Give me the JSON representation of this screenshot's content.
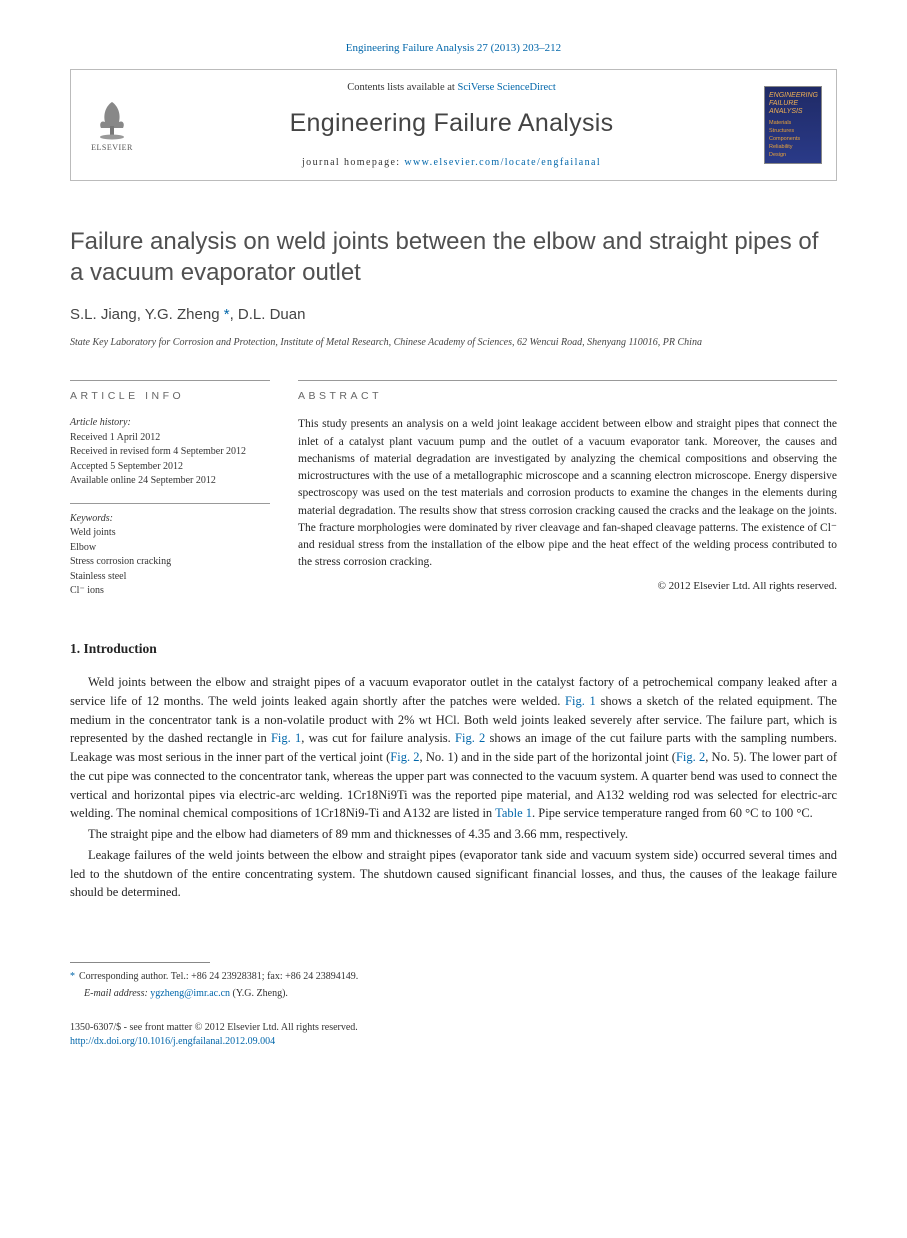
{
  "journal_ref": "Engineering Failure Analysis 27 (2013) 203–212",
  "header": {
    "contents_prefix": "Contents lists available at ",
    "contents_link": "SciVerse ScienceDirect",
    "journal_name": "Engineering Failure Analysis",
    "homepage_prefix": "journal homepage: ",
    "homepage_link": "www.elsevier.com/locate/engfailanal",
    "logo_text": "ELSEVIER",
    "cover": {
      "title": "ENGINEERING FAILURE ANALYSIS",
      "items": [
        "Materials",
        "Structures",
        "Components",
        "Reliability",
        "Design"
      ]
    }
  },
  "article": {
    "title": "Failure analysis on weld joints between the elbow and straight pipes of a vacuum evaporator outlet",
    "authors_html": "S.L. Jiang, Y.G. Zheng <span class=\"corr\">*</span>, D.L. Duan",
    "affiliation": "State Key Laboratory for Corrosion and Protection, Institute of Metal Research, Chinese Academy of Sciences, 62 Wencui Road, Shenyang 110016, PR China"
  },
  "article_info": {
    "heading": "ARTICLE INFO",
    "history_title": "Article history:",
    "received": "Received 1 April 2012",
    "revised": "Received in revised form 4 September 2012",
    "accepted": "Accepted 5 September 2012",
    "online": "Available online 24 September 2012",
    "keywords_title": "Keywords:",
    "keywords": [
      "Weld joints",
      "Elbow",
      "Stress corrosion cracking",
      "Stainless steel",
      "Cl⁻ ions"
    ]
  },
  "abstract": {
    "heading": "ABSTRACT",
    "text": "This study presents an analysis on a weld joint leakage accident between elbow and straight pipes that connect the inlet of a catalyst plant vacuum pump and the outlet of a vacuum evaporator tank. Moreover, the causes and mechanisms of material degradation are investigated by analyzing the chemical compositions and observing the microstructures with the use of a metallographic microscope and a scanning electron microscope. Energy dispersive spectroscopy was used on the test materials and corrosion products to examine the changes in the elements during material degradation. The results show that stress corrosion cracking caused the cracks and the leakage on the joints. The fracture morphologies were dominated by river cleavage and fan-shaped cleavage patterns. The existence of Cl⁻ and residual stress from the installation of the elbow pipe and the heat effect of the welding process contributed to the stress corrosion cracking.",
    "copyright": "© 2012 Elsevier Ltd. All rights reserved."
  },
  "intro": {
    "heading": "1. Introduction",
    "p1": "Weld joints between the elbow and straight pipes of a vacuum evaporator outlet in the catalyst factory of a petrochemical company leaked after a service life of 12 months. The weld joints leaked again shortly after the patches were welded. <span class=\"fig-link\">Fig. 1</span> shows a sketch of the related equipment. The medium in the concentrator tank is a non-volatile product with 2% wt HCl. Both weld joints leaked severely after service. The failure part, which is represented by the dashed rectangle in <span class=\"fig-link\">Fig. 1</span>, was cut for failure analysis. <span class=\"fig-link\">Fig. 2</span> shows an image of the cut failure parts with the sampling numbers. Leakage was most serious in the inner part of the vertical joint (<span class=\"fig-link\">Fig. 2</span>, No. 1) and in the side part of the horizontal joint (<span class=\"fig-link\">Fig. 2</span>, No. 5). The lower part of the cut pipe was connected to the concentrator tank, whereas the upper part was connected to the vacuum system. A quarter bend was used to connect the vertical and horizontal pipes via electric-arc welding. 1Cr18Ni9Ti was the reported pipe material, and A132 welding rod was selected for electric-arc welding. The nominal chemical compositions of 1Cr18Ni9-Ti and A132 are listed in <span class=\"fig-link\">Table 1</span>. Pipe service temperature ranged from 60 °C to 100 °C.",
    "p2": "The straight pipe and the elbow had diameters of 89 mm and thicknesses of 4.35 and 3.66 mm, respectively.",
    "p3": "Leakage failures of the weld joints between the elbow and straight pipes (evaporator tank side and vacuum system side) occurred several times and led to the shutdown of the entire concentrating system. The shutdown caused significant financial losses, and thus, the causes of the leakage failure should be determined."
  },
  "footer": {
    "corr_text": "Corresponding author. Tel.: +86 24 23928381; fax: +86 24 23894149.",
    "email_label": "E-mail address:",
    "email": "ygzheng@imr.ac.cn",
    "email_author": "(Y.G. Zheng).",
    "issn_line": "1350-6307/$ - see front matter © 2012 Elsevier Ltd. All rights reserved.",
    "doi": "http://dx.doi.org/10.1016/j.engfailanal.2012.09.004"
  }
}
